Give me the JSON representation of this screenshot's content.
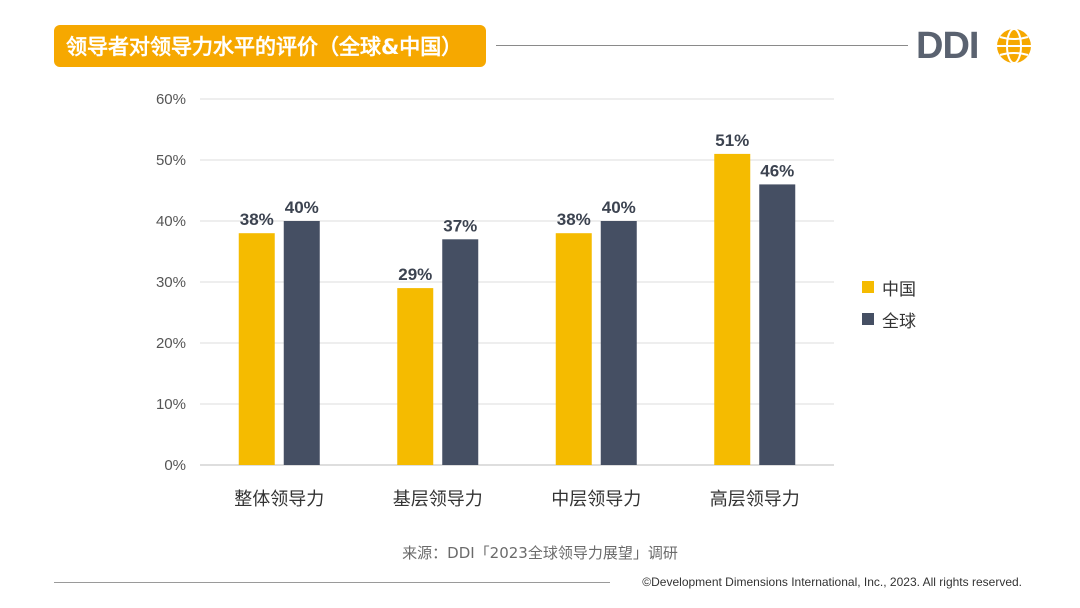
{
  "title": "领导者对领导力水平的评价（全球&中国）",
  "logo_text": "DDI",
  "colors": {
    "china": "#f5bb00",
    "global": "#454f63",
    "accent": "#f6a800"
  },
  "chart_data": {
    "type": "bar",
    "categories": [
      "整体领导力",
      "基层领导力",
      "中层领导力",
      "高层领导力"
    ],
    "series": [
      {
        "name": "中国",
        "values": [
          38,
          29,
          38,
          51
        ],
        "labels": [
          "38%",
          "29%",
          "38%",
          "51%"
        ]
      },
      {
        "name": "全球",
        "values": [
          40,
          37,
          40,
          46
        ],
        "labels": [
          "40%",
          "37%",
          "40%",
          "46%"
        ]
      }
    ],
    "yticks": [
      "0%",
      "10%",
      "20%",
      "30%",
      "40%",
      "50%",
      "60%"
    ],
    "ylim": [
      0,
      60
    ],
    "grid": true,
    "legend_position": "right"
  },
  "source": "来源：DDI「2023全球领导力展望」调研",
  "copyright": "©Development Dimensions International, Inc., 2023. All rights reserved."
}
